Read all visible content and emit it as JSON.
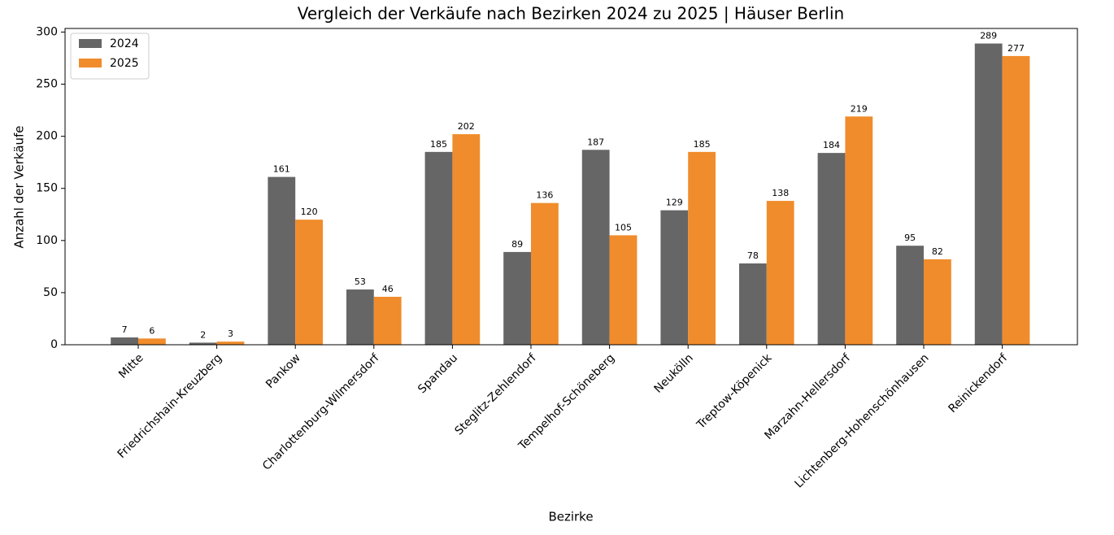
{
  "chart_data": {
    "type": "bar",
    "title": "Vergleich der Verkäufe nach Bezirken 2024 zu 2025 | Häuser Berlin",
    "x_label": "Bezirke",
    "y_label": "Anzahl der Verkäufe",
    "categories": [
      "Mitte",
      "Friedrichshain-Kreuzberg",
      "Pankow",
      "Charlottenburg-Wilmersdorf",
      "Spandau",
      "Steglitz-Zehlendorf",
      "Tempelhof-Schöneberg",
      "Neukölln",
      "Treptow-Köpenick",
      "Marzahn-Hellersdorf",
      "Lichtenberg-Hohenschönhausen",
      "Reinickendorf"
    ],
    "series": [
      {
        "name": "2024",
        "color": "#666666",
        "values": [
          7,
          2,
          161,
          53,
          185,
          89,
          187,
          129,
          78,
          184,
          95,
          289
        ]
      },
      {
        "name": "2025",
        "color": "#f08c2b",
        "values": [
          6,
          3,
          120,
          46,
          202,
          136,
          105,
          185,
          138,
          219,
          82,
          277
        ]
      }
    ],
    "ylim": [
      0,
      303.45
    ],
    "yticks": [
      0,
      50,
      100,
      150,
      200,
      250,
      300
    ],
    "legend": "upper left"
  }
}
